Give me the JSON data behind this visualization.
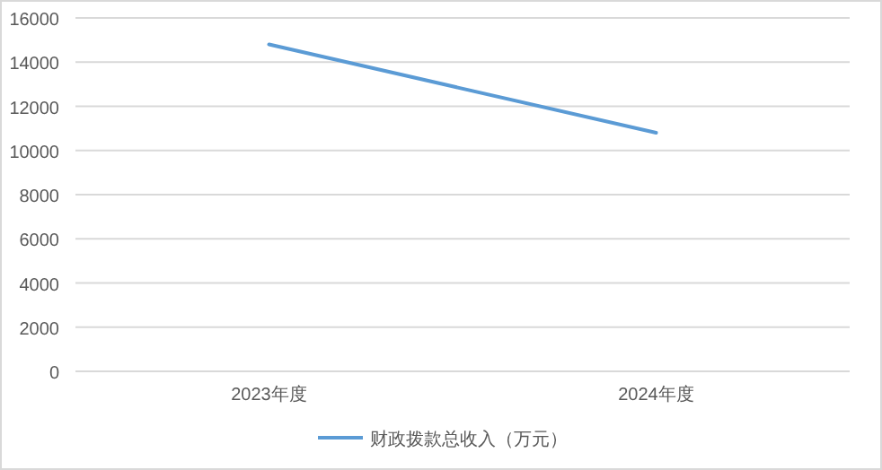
{
  "chart_data": {
    "type": "line",
    "categories": [
      "2023年度",
      "2024年度"
    ],
    "series": [
      {
        "name": "财政拨款总收入（万元）",
        "color": "#5b9bd5",
        "values": [
          14800,
          10800
        ]
      }
    ],
    "ylim": [
      0,
      16000
    ],
    "yticks": [
      0,
      2000,
      4000,
      6000,
      8000,
      10000,
      12000,
      14000,
      16000
    ],
    "grid": "y",
    "legend": "bottom",
    "marker": "none",
    "line_style": "solid"
  }
}
